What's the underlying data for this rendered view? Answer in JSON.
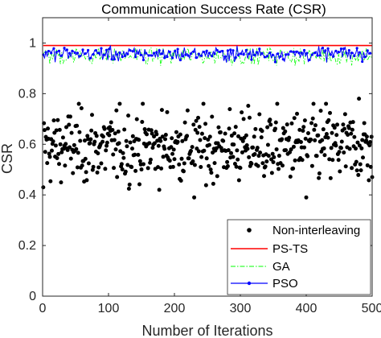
{
  "chart_data": {
    "type": "line",
    "title": "Communication Success Rate (CSR)",
    "xlabel": "Number of Iterations",
    "ylabel": "CSR",
    "xlim": [
      0,
      500
    ],
    "ylim": [
      0,
      1.1
    ],
    "xticks": [
      0,
      100,
      200,
      300,
      400,
      500
    ],
    "yticks": [
      0,
      0.2,
      0.4,
      0.6,
      0.8,
      1
    ],
    "xtick_labels": [
      "0",
      "100",
      "200",
      "300",
      "400",
      "500"
    ],
    "ytick_labels": [
      "0",
      "0.2",
      "0.4",
      "0.6",
      "0.8",
      "1"
    ],
    "grid": false,
    "box": true,
    "legend_position": "bottom-right",
    "series": [
      {
        "name": "Non-interleaving",
        "style": "dots",
        "color": "#000000",
        "x_range": [
          1,
          500
        ],
        "n_points": 500,
        "y_mean": 0.59,
        "y_spread": 0.07,
        "y_min": 0.39,
        "y_max": 0.78,
        "sample_points": [
          [
            1,
            0.43
          ],
          [
            230,
            0.39
          ],
          [
            400,
            0.39
          ],
          [
            430,
            0.76
          ],
          [
            480,
            0.78
          ],
          [
            500,
            0.47
          ]
        ]
      },
      {
        "name": "PS-TS",
        "style": "line",
        "color": "#ff0000",
        "x": [
          1,
          500
        ],
        "y": [
          0.99,
          0.99
        ]
      },
      {
        "name": "GA",
        "style": "dashdot",
        "color": "#00ff00",
        "x_range": [
          1,
          500
        ],
        "y_mean": 0.95,
        "y_spread": 0.018,
        "y_min": 0.91,
        "y_max": 0.98
      },
      {
        "name": "PSO",
        "style": "line-markers",
        "color": "#0000ff",
        "x_range": [
          1,
          500
        ],
        "y_mean": 0.957,
        "y_spread": 0.014,
        "y_min": 0.92,
        "y_max": 0.99
      }
    ]
  }
}
